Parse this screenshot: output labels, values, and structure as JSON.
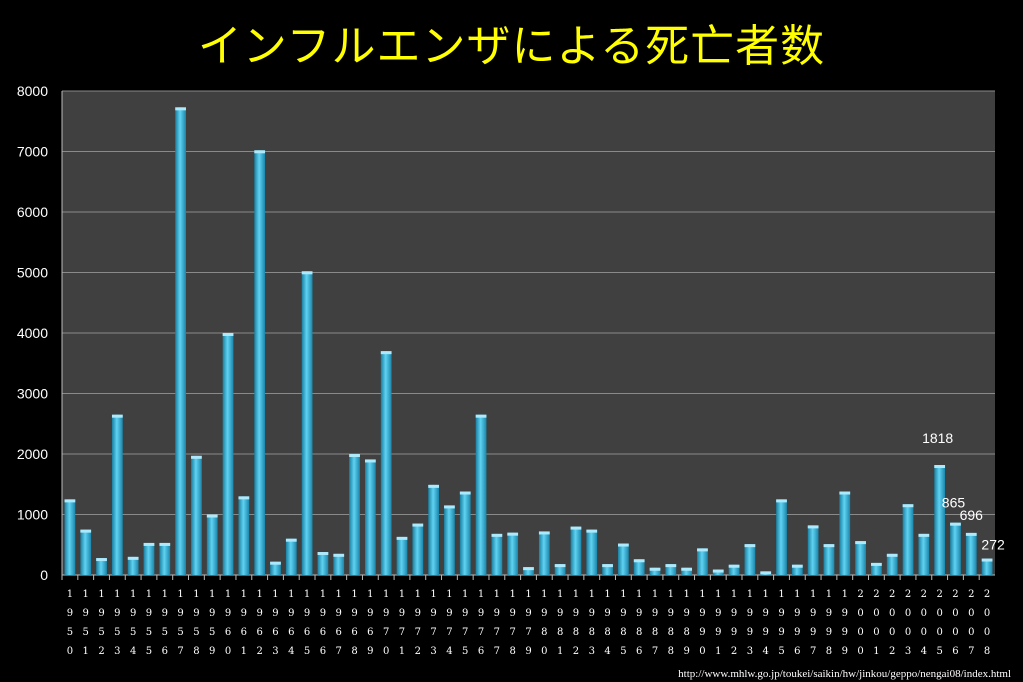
{
  "chart_data": {
    "type": "bar",
    "title": "インフルエンザによる死亡者数",
    "xlabel": "",
    "ylabel": "",
    "ylim": [
      0,
      8000
    ],
    "yticks": [
      0,
      1000,
      2000,
      3000,
      4000,
      5000,
      6000,
      7000,
      8000
    ],
    "grid": true,
    "bar_color": "#2ab0d8",
    "plot_background": "#404040",
    "categories": [
      "1950",
      "1951",
      "1952",
      "1953",
      "1954",
      "1955",
      "1956",
      "1957",
      "1958",
      "1959",
      "1960",
      "1961",
      "1962",
      "1963",
      "1964",
      "1965",
      "1966",
      "1967",
      "1968",
      "1969",
      "1970",
      "1971",
      "1972",
      "1973",
      "1974",
      "1975",
      "1976",
      "1977",
      "1978",
      "1979",
      "1980",
      "1981",
      "1982",
      "1983",
      "1984",
      "1985",
      "1986",
      "1987",
      "1988",
      "1989",
      "1990",
      "1991",
      "1992",
      "1993",
      "1994",
      "1995",
      "1996",
      "1997",
      "1998",
      "1999",
      "2000",
      "2001",
      "2002",
      "2003",
      "2004",
      "2005",
      "2006",
      "2007",
      "2008"
    ],
    "values": [
      1250,
      750,
      280,
      2650,
      300,
      530,
      530,
      7730,
      1970,
      1000,
      4000,
      1300,
      7020,
      220,
      600,
      5020,
      380,
      350,
      2000,
      1910,
      3700,
      630,
      850,
      1490,
      1150,
      1380,
      2650,
      680,
      700,
      130,
      720,
      180,
      800,
      750,
      180,
      520,
      260,
      120,
      180,
      120,
      440,
      90,
      170,
      510,
      60,
      1250,
      170,
      820,
      510,
      1380,
      560,
      200,
      350,
      1170,
      680,
      1818,
      865,
      696,
      272
    ],
    "data_labels": [
      {
        "index": 55,
        "text": "1818"
      },
      {
        "index": 56,
        "text": "865"
      },
      {
        "index": 57,
        "text": "696"
      },
      {
        "index": 58,
        "text": "272"
      }
    ]
  },
  "source_text": "http://www.mhlw.go.jp/toukei/saikin/hw/jinkou/geppo/nengai08/index.html"
}
